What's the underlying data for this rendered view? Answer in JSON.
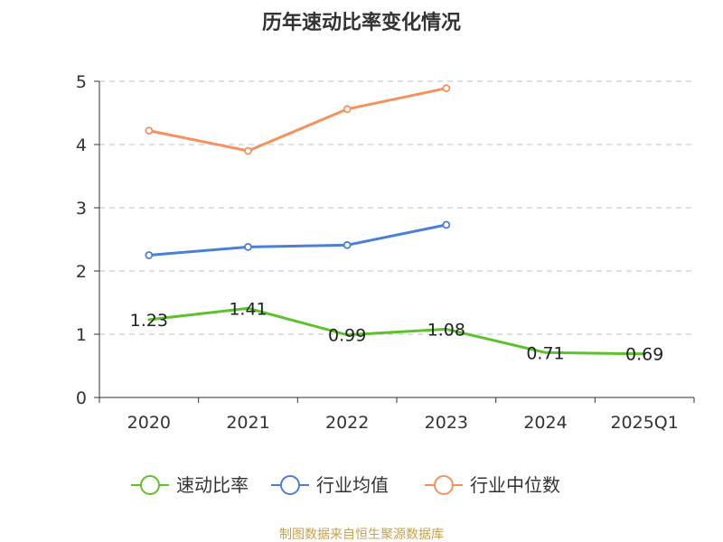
{
  "chart_data": {
    "type": "line",
    "title": "历年速动比率变化情况",
    "categories": [
      "2020",
      "2021",
      "2022",
      "2023",
      "2024",
      "2025Q1"
    ],
    "ylim": [
      0,
      5
    ],
    "yticks": [
      0,
      1,
      2,
      3,
      4,
      5
    ],
    "grid": true,
    "legend_position": "bottom",
    "series": [
      {
        "name": "速动比率",
        "color": "#5cc12a",
        "values": [
          1.23,
          1.41,
          0.99,
          1.08,
          0.71,
          0.69
        ],
        "labels": [
          "1.23",
          "1.41",
          "0.99",
          "1.08",
          "0.71",
          "0.69"
        ],
        "show_markers": false
      },
      {
        "name": "行业均值",
        "color": "#4a7fd9",
        "values": [
          2.25,
          2.38,
          2.41,
          2.73,
          null,
          null
        ],
        "show_markers": true
      },
      {
        "name": "行业中位数",
        "color": "#f5915c",
        "values": [
          4.22,
          3.9,
          4.56,
          4.89,
          null,
          null
        ],
        "show_markers": true
      }
    ]
  },
  "source_text": "制图数据来自恒生聚源数据库"
}
